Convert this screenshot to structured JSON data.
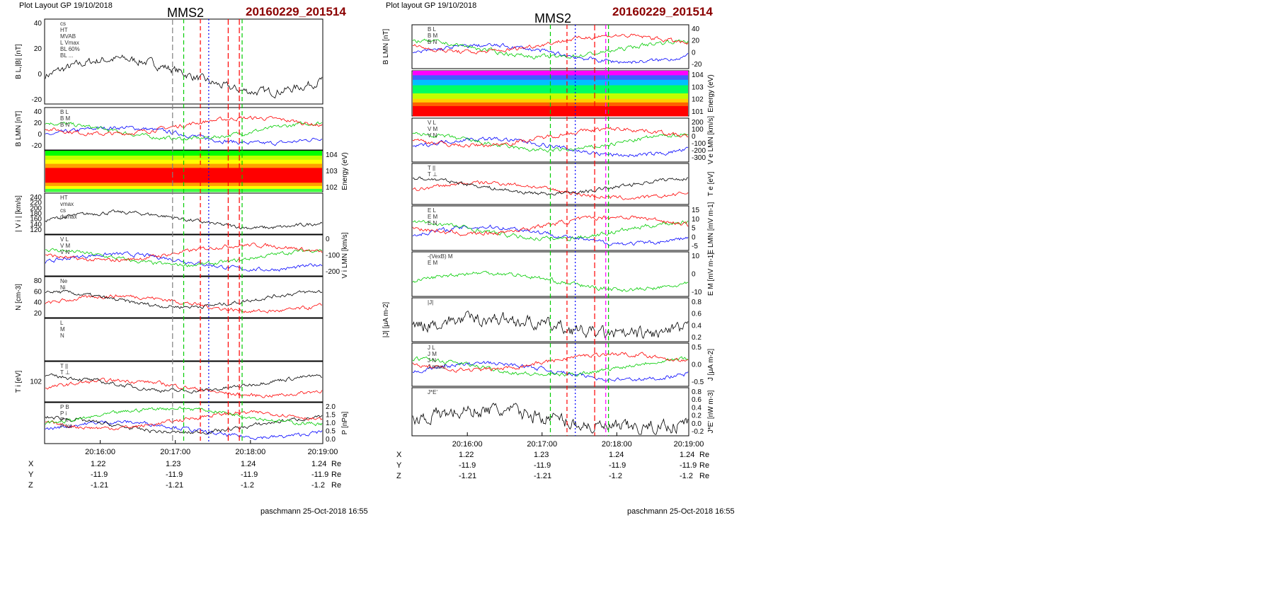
{
  "colors": {
    "red": "#ff0000",
    "green": "#00cc00",
    "blue": "#0000ff",
    "black": "#000000",
    "gray": "#808080",
    "darkred": "#8b0000",
    "magenta": "#ff00ff",
    "cyan": "#00c0ff"
  },
  "left": {
    "header": "Plot Layout GP 19/10/2018",
    "mission": "MMS2",
    "event": "20160229_201514",
    "footer": "paschmann 25-Oct-2018 16:55",
    "time_ticks": [
      "20:16:00",
      "20:17:00",
      "20:18:00",
      "20:19:00"
    ],
    "orbit": {
      "unit": "Re",
      "rows": [
        {
          "label": "X",
          "values": [
            "1.22",
            "1.23",
            "1.24",
            "1.24"
          ]
        },
        {
          "label": "Y",
          "values": [
            "-11.9",
            "-11.9",
            "-11.9",
            "-11.9"
          ]
        },
        {
          "label": "Z",
          "values": [
            "-1.21",
            "-1.21",
            "-1.2",
            "-1.2"
          ]
        }
      ]
    },
    "panels": [
      {
        "id": "bl",
        "ylabel": "B_L,|B| [nT]",
        "ticks": [
          "40",
          "20",
          "0",
          "-20"
        ],
        "legend": [
          "cs",
          "HT",
          "MVAB",
          "L_Vmax",
          "BL_60%",
          "BL_..."
        ]
      },
      {
        "id": "blmn",
        "ylabel": "B_LMN [nT]",
        "ticks": [
          "40",
          "20",
          "0",
          "-20"
        ],
        "legend": [
          "B_L",
          "B_M",
          "B_N"
        ]
      },
      {
        "id": "spec",
        "ylabel": "Energy (eV)",
        "ticks": [
          "10^4",
          "10^3",
          "10^2"
        ]
      },
      {
        "id": "vi",
        "ylabel": "| V_i | [km/s]",
        "ticks": [
          "240",
          "220",
          "200",
          "180",
          "160",
          "140",
          "120"
        ],
        "legend": [
          "HT",
          "vmax",
          "cs",
          "dvmax"
        ]
      },
      {
        "id": "vlmn",
        "ylabel": "V_i LMN [km/s]",
        "ticks": [
          "0",
          "-100",
          "-200"
        ],
        "legend": [
          "V_L",
          "V_M",
          "V_N"
        ]
      },
      {
        "id": "n",
        "ylabel": "N [cm^-3]",
        "ticks": [
          "80",
          "60",
          "40",
          "20"
        ],
        "legend": [
          "Ne",
          "Ni"
        ]
      },
      {
        "id": "blank",
        "ylabel": "",
        "ticks": [],
        "legend": [
          "L",
          "M",
          "N"
        ]
      },
      {
        "id": "ti",
        "ylabel": "T_i [eV]",
        "ticks": [
          "10^2"
        ],
        "legend": [
          "T_||",
          "T_⊥"
        ]
      },
      {
        "id": "p",
        "ylabel": "P [nPa]",
        "ticks": [
          "2.0",
          "1.5",
          "1.0",
          "0.5",
          "0.0"
        ],
        "legend": [
          "P_B",
          "P_i",
          "P_e",
          "P_tot"
        ]
      }
    ]
  },
  "right": {
    "header": "Plot layout GP 19/10/2018",
    "mission": "MMS2",
    "event": "20160229_201514",
    "footer": "paschmann 25-Oct-2018 16:55",
    "time_ticks": [
      "20:16:00",
      "20:17:00",
      "20:18:00",
      "20:19:00"
    ],
    "orbit": {
      "unit": "Re",
      "rows": [
        {
          "label": "X",
          "values": [
            "1.22",
            "1.23",
            "1.24",
            "1.24"
          ]
        },
        {
          "label": "Y",
          "values": [
            "-11.9",
            "-11.9",
            "-11.9",
            "-11.9"
          ]
        },
        {
          "label": "Z",
          "values": [
            "-1.21",
            "-1.21",
            "-1.2",
            "-1.2"
          ]
        }
      ]
    },
    "panels": [
      {
        "id": "blmn",
        "ylabel": "B_LMN [nT]",
        "ticks": [
          "40",
          "20",
          "0",
          "-20"
        ],
        "legend": [
          "B_L",
          "B_M",
          "B_N"
        ]
      },
      {
        "id": "espec",
        "ylabel": "Energy (eV)",
        "ticks": [
          "10^4",
          "10^3",
          "10^2",
          "10^1"
        ]
      },
      {
        "id": "ve",
        "ylabel": "V_e LMN [km/s]",
        "ticks": [
          "200",
          "100",
          "0",
          "-100",
          "-200",
          "-300"
        ],
        "legend": [
          "V_L",
          "V_M",
          "V_N"
        ]
      },
      {
        "id": "te",
        "ylabel": "T_e [eV]",
        "ticks": [],
        "legend": [
          "T_||",
          "T_⊥"
        ]
      },
      {
        "id": "elmn",
        "ylabel": "E_LMN [mV m^-1]",
        "ticks": [
          "15",
          "10",
          "5",
          "0",
          "-5"
        ],
        "legend": [
          "E_L",
          "E_M",
          "E_N"
        ]
      },
      {
        "id": "em",
        "ylabel": "E_M [mV m^-1]",
        "ticks": [
          "10",
          "0",
          "-10"
        ],
        "legend": [
          "-(VexB)_M",
          "E_M"
        ]
      },
      {
        "id": "j",
        "ylabel": "|J| [μA m^-2]",
        "ticks": [
          "0.8",
          "0.6",
          "0.4",
          "0.2"
        ],
        "legend": [
          "|J|"
        ]
      },
      {
        "id": "jlmn",
        "ylabel": "J [μA m^-2]",
        "ticks": [
          "0.5",
          "0.0",
          "-0.5"
        ],
        "legend": [
          "J_L",
          "J_M",
          "J_N",
          "J_maxJ"
        ]
      },
      {
        "id": "je",
        "ylabel": "J*E' [nW m^-3]",
        "ticks": [
          "0.8",
          "0.6",
          "0.4",
          "0.2",
          "0.0",
          "-0.2"
        ],
        "legend": [
          "J*E'"
        ]
      }
    ]
  }
}
